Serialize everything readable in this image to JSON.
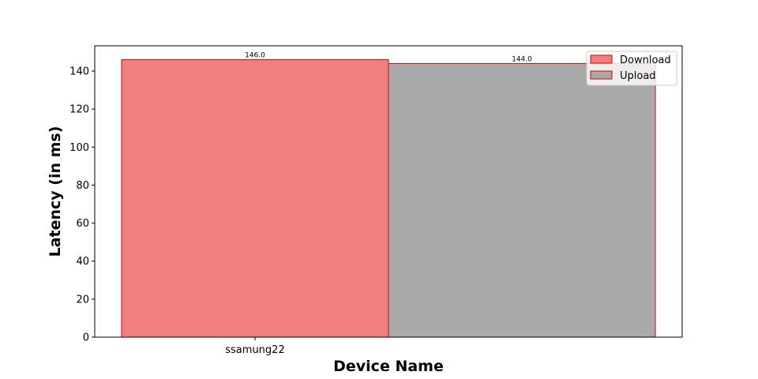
{
  "chart_data": {
    "type": "bar",
    "categories": [
      "ssamung22"
    ],
    "series": [
      {
        "name": "Download",
        "values": [
          146.0
        ],
        "labels": [
          "146.0"
        ],
        "color": "#f08080"
      },
      {
        "name": "Upload",
        "values": [
          144.0
        ],
        "labels": [
          "144.0"
        ],
        "color": "#a9a9a9"
      }
    ],
    "edge_color": "#dd0000",
    "xlabel": "Device Name",
    "ylabel": "Latency (in ms)",
    "ylim": [
      0,
      153.3
    ],
    "yticks": [
      0,
      20,
      40,
      60,
      80,
      100,
      120,
      140
    ],
    "grid": false,
    "legend_position": "top-right"
  }
}
